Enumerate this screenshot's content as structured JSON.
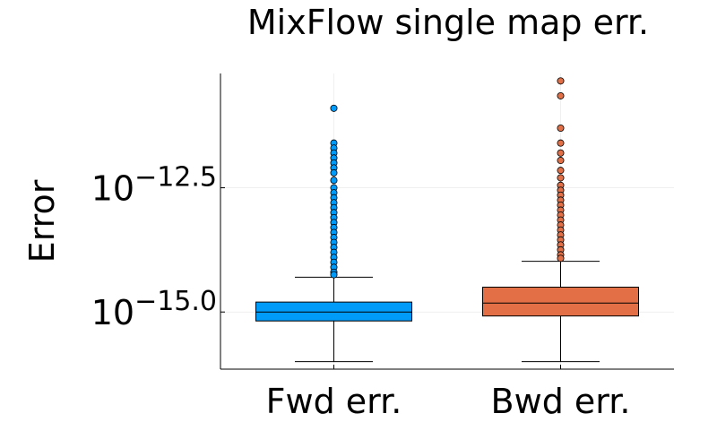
{
  "chart_data": {
    "type": "box",
    "title": "MixFlow single map err.",
    "xlabel": "",
    "ylabel": "Error",
    "y_scale": "log10",
    "ylim_log10": [
      -16.15,
      -10.2
    ],
    "yticks": [
      {
        "log10": -12.5,
        "base": "10",
        "exp": "−12.5"
      },
      {
        "log10": -15.0,
        "base": "10",
        "exp": "−15.0"
      }
    ],
    "grid": true,
    "legend": "none",
    "categories": [
      "Fwd err.",
      "Bwd err."
    ],
    "series": [
      {
        "category": "Fwd err.",
        "color": "#009af9",
        "whisker_low_log10": -16.0,
        "q1_log10": -15.18,
        "median_log10": -15.0,
        "q3_log10": -14.8,
        "whisker_high_log10": -14.3,
        "outliers_log10": [
          -10.9,
          -11.6,
          -11.7,
          -11.8,
          -11.9,
          -12.0,
          -12.1,
          -12.2,
          -12.35,
          -12.5,
          -12.6,
          -12.7,
          -12.8,
          -12.9,
          -13.0,
          -13.1,
          -13.2,
          -13.3,
          -13.4,
          -13.5,
          -13.6,
          -13.7,
          -13.8,
          -13.9,
          -14.0,
          -14.1,
          -14.2,
          -14.25
        ]
      },
      {
        "category": "Bwd err.",
        "color": "#e26f46",
        "whisker_low_log10": -16.0,
        "q1_log10": -15.08,
        "median_log10": -14.82,
        "q3_log10": -14.5,
        "whisker_high_log10": -13.98,
        "outliers_log10": [
          -10.35,
          -10.65,
          -11.3,
          -11.6,
          -11.8,
          -11.95,
          -12.15,
          -12.3,
          -12.45,
          -12.55,
          -12.65,
          -12.75,
          -12.85,
          -12.95,
          -13.05,
          -13.15,
          -13.25,
          -13.35,
          -13.45,
          -13.55,
          -13.65,
          -13.75,
          -13.85,
          -13.92
        ]
      }
    ]
  }
}
